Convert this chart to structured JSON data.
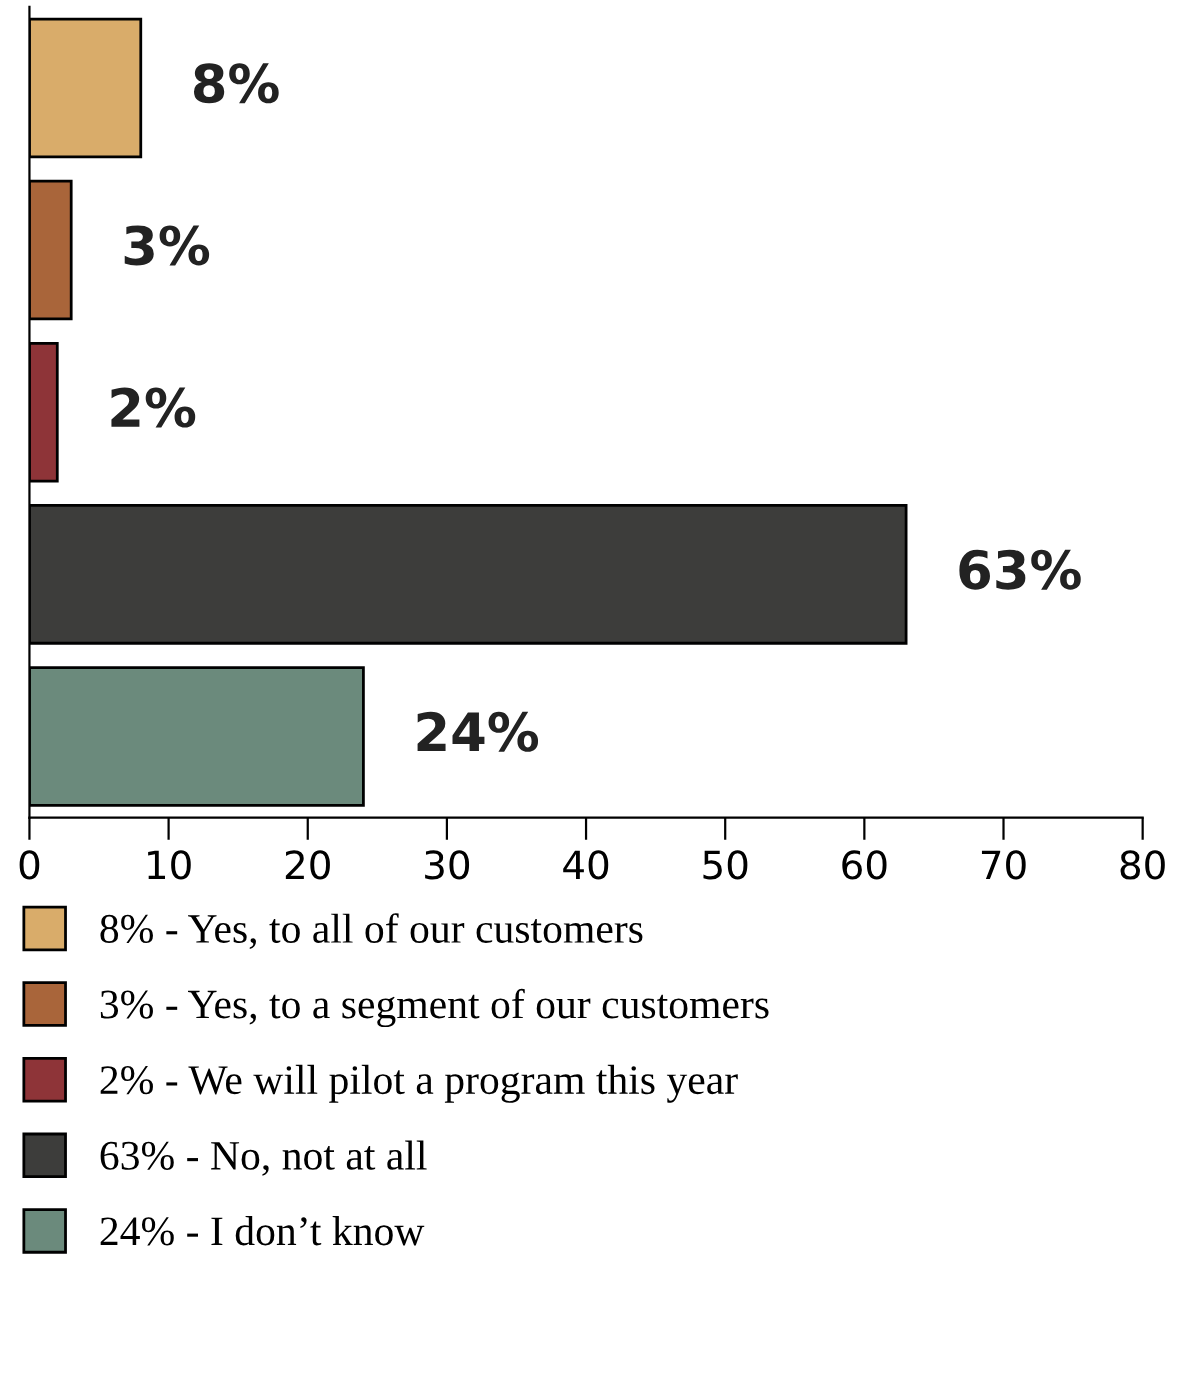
{
  "chart_data": {
    "type": "bar",
    "orientation": "horizontal",
    "categories": [
      null,
      null,
      null,
      null,
      null
    ],
    "series": [
      {
        "name": "8% - Yes, to all of our customers",
        "color": "#d9ac6a",
        "values": [
          8,
          null,
          null,
          null,
          null
        ],
        "value_labels": [
          "8%",
          null,
          null,
          null,
          null
        ]
      },
      {
        "name": "3% - Yes, to a segment of our customers",
        "color": "#a9653a",
        "values": [
          null,
          3,
          null,
          null,
          null
        ],
        "value_labels": [
          null,
          "3%",
          null,
          null,
          null
        ]
      },
      {
        "name": "2% - We will pilot a program this year",
        "color": "#8e3438",
        "values": [
          null,
          null,
          2,
          null,
          null
        ],
        "value_labels": [
          null,
          null,
          "2%",
          null,
          null
        ]
      },
      {
        "name": "63% - No, not at all",
        "color": "#3d3d3b",
        "values": [
          null,
          null,
          null,
          63,
          null
        ],
        "value_labels": [
          null,
          null,
          null,
          "63%",
          null
        ]
      },
      {
        "name": "24% - I don’t know",
        "color": "#6b8a7c",
        "values": [
          null,
          null,
          null,
          null,
          24
        ],
        "value_labels": [
          null,
          null,
          null,
          null,
          "24%"
        ]
      }
    ],
    "xlim": [
      0,
      80
    ],
    "xticks": [
      0,
      10,
      20,
      30,
      40,
      50,
      60,
      70,
      80
    ],
    "tick_labels": "x",
    "grid": false,
    "legend": "bottom"
  }
}
